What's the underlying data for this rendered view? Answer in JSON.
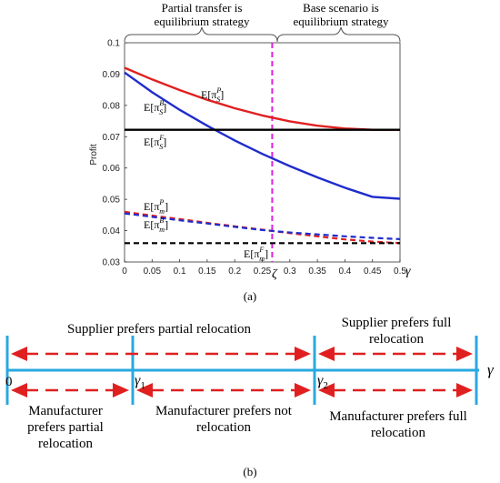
{
  "chart_data": {
    "type": "line",
    "panel_a": {
      "caption": "(a)",
      "ylabel": "Profit",
      "x_symbol": "γ",
      "xlim": [
        0,
        0.5
      ],
      "ylim": [
        0.03,
        0.1
      ],
      "xticks": [
        "0",
        "0.05",
        "0.1",
        "0.15",
        "0.2",
        "0.25",
        "0.3",
        "0.35",
        "0.4",
        "0.45",
        "0.5"
      ],
      "yticks": [
        "0.03",
        "0.04",
        "0.05",
        "0.06",
        "0.07",
        "0.08",
        "0.09",
        "0.1"
      ],
      "x": [
        0,
        0.05,
        0.1,
        0.15,
        0.2,
        0.25,
        0.3,
        0.35,
        0.4,
        0.45,
        0.5
      ],
      "series": [
        {
          "label_base": "E[π",
          "label_sub": "S",
          "label_sup": "P",
          "label_end": "]",
          "color": "#e02020",
          "dash": "solid",
          "values": [
            0.092,
            0.0883,
            0.0849,
            0.0818,
            0.0791,
            0.0768,
            0.0749,
            0.0735,
            0.0726,
            0.0722,
            0.0722
          ]
        },
        {
          "label_base": "E[π",
          "label_sub": "S",
          "label_sup": "B",
          "label_end": "]",
          "color": "#1f2ccc",
          "dash": "solid",
          "values": [
            0.0905,
            0.0842,
            0.0786,
            0.0735,
            0.0688,
            0.0645,
            0.0606,
            0.057,
            0.0537,
            0.0508,
            0.0502
          ]
        },
        {
          "label_base": "E[π",
          "label_sub": "S",
          "label_sup": "F",
          "label_end": "]",
          "color": "#000000",
          "dash": "solid",
          "values": [
            0.0722,
            0.0722,
            0.0722,
            0.0722,
            0.0722,
            0.0722,
            0.0722,
            0.0722,
            0.0722,
            0.0722,
            0.0722
          ]
        },
        {
          "label_base": "E[π",
          "label_sub": "m",
          "label_sup": "P",
          "label_end": "]",
          "color": "#e02020",
          "dash": "dashed",
          "values": [
            0.046,
            0.0448,
            0.0437,
            0.0425,
            0.0414,
            0.0403,
            0.0392,
            0.0382,
            0.0372,
            0.0365,
            0.036
          ]
        },
        {
          "label_base": "E[π",
          "label_sub": "m",
          "label_sup": "B",
          "label_end": "]",
          "color": "#1f2ccc",
          "dash": "dashed",
          "values": [
            0.0455,
            0.0444,
            0.0433,
            0.0423,
            0.0412,
            0.0402,
            0.0394,
            0.0388,
            0.0382,
            0.0377,
            0.0373
          ]
        },
        {
          "label_base": "E[π",
          "label_sub": "m",
          "label_sup": "F",
          "label_end": "]",
          "color": "#000000",
          "dash": "dashed",
          "values": [
            0.036,
            0.036,
            0.036,
            0.036,
            0.036,
            0.036,
            0.036,
            0.036,
            0.036,
            0.036,
            0.036
          ]
        }
      ],
      "threshold": {
        "x": 0.268,
        "label": "ζ",
        "color": "#e020e0"
      },
      "top_annotations": [
        {
          "line1": "Partial transfer is",
          "line2": "equilibrium strategy"
        },
        {
          "line1": "Base scenario is",
          "line2": "equilibrium strategy"
        }
      ]
    },
    "panel_b": {
      "caption": "(b)",
      "axis_color": "#2aa8e0",
      "arrow_color": "#e02020",
      "axis_end_label": "γ",
      "ticks": [
        {
          "label": "0",
          "sub": ""
        },
        {
          "label": "γ",
          "sub": "1"
        },
        {
          "label": "γ",
          "sub": "2"
        }
      ],
      "texts": {
        "supplier_partial": "Supplier prefers partial relocation",
        "supplier_full_1": "Supplier prefers full",
        "supplier_full_2": "relocation",
        "manu_partial_1": "Manufacturer",
        "manu_partial_2": "prefers partial",
        "manu_partial_3": "relocation",
        "manu_not_1": "Manufacturer prefers not",
        "manu_not_2": "relocation",
        "manu_full_1": "Manufacturer prefers full",
        "manu_full_2": "relocation"
      }
    }
  }
}
